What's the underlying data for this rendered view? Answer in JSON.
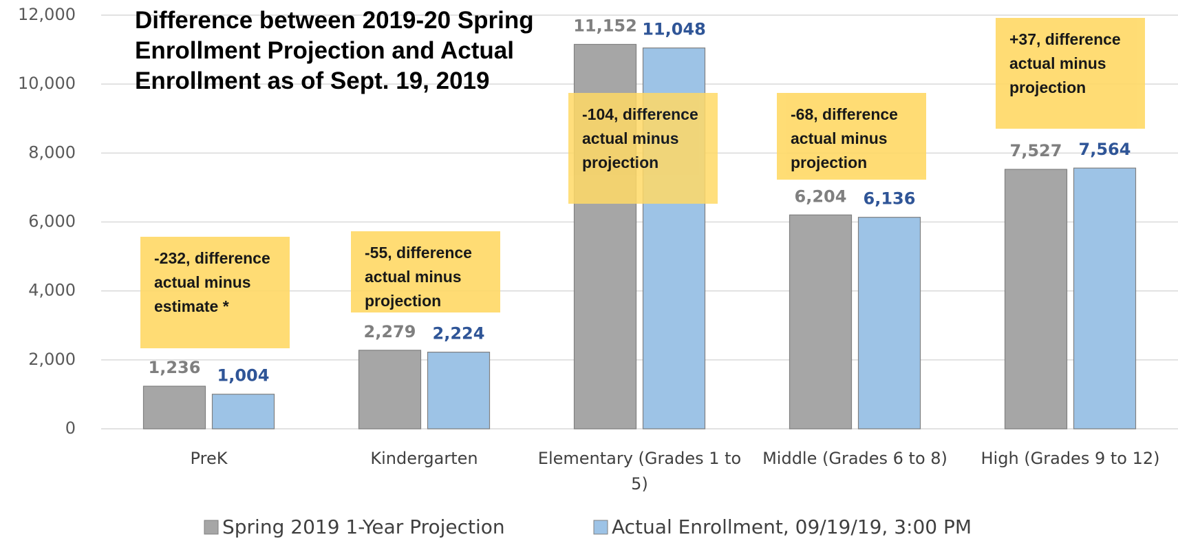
{
  "chart_data": {
    "type": "bar",
    "title": "Difference between 2019-20 Spring Enrollment Projection and Actual Enrollment as of Sept. 19, 2019",
    "categories": [
      "PreK",
      "Kindergarten",
      "Elementary (Grades 1 to 5)",
      "Middle (Grades 6 to 8)",
      "High (Grades 9 to 12)"
    ],
    "series": [
      {
        "name": "Spring 2019 1-Year Projection",
        "color": "#a6a6a6",
        "label_color": "#7f7f7f",
        "values": [
          1236,
          2279,
          11152,
          6204,
          7527
        ],
        "value_labels": [
          "1,236",
          "2,279",
          "11,152",
          "6,204",
          "7,527"
        ]
      },
      {
        "name": "Actual Enrollment, 09/19/19, 3:00 PM",
        "color": "#9dc3e6",
        "label_color": "#2f5597",
        "values": [
          1004,
          2224,
          11048,
          6136,
          7564
        ],
        "value_labels": [
          "1,004",
          "2,224",
          "11,048",
          "6,136",
          "7,564"
        ]
      }
    ],
    "ylim": [
      0,
      12000
    ],
    "yticks": [
      0,
      {
        "value": 2000,
        "label": "2,000"
      },
      {
        "value": 4000,
        "label": "4,000"
      },
      {
        "value": 6000,
        "label": "6,000"
      },
      {
        "value": 8000,
        "label": "8,000"
      },
      {
        "value": 10000,
        "label": "10,000"
      },
      {
        "value": 12000,
        "label": "12,000"
      }
    ],
    "grid": true,
    "annotations": [
      "-232, difference actual minus estimate *",
      "-55, difference actual minus projection",
      "-104, difference actual minus projection",
      "-68, difference actual minus projection",
      "+37, difference actual minus projection"
    ],
    "annotation_color": "#ffd966",
    "legend": "bottom"
  }
}
